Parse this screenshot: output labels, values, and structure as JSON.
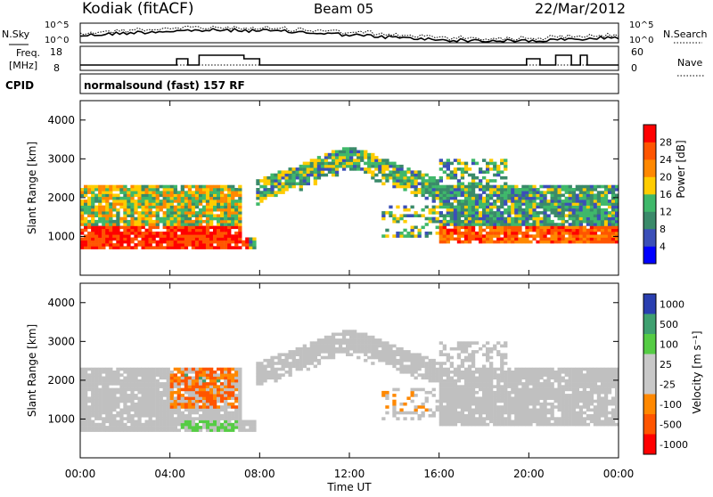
{
  "header": {
    "station": "Kodiak (fitACF)",
    "beam": "Beam 05",
    "date": "22/Mar/2012"
  },
  "noise_panel": {
    "left_label": "N.Sky",
    "right_label": "N.Search",
    "left_ticks": [
      "10^5",
      "10^0"
    ],
    "right_ticks": [
      "10^5",
      "10^0"
    ]
  },
  "freq_panel": {
    "left_label_line1": "Freq.",
    "left_label_line2": "[MHz]",
    "right_label": "Nave",
    "left_ticks": [
      "18",
      "8"
    ],
    "right_ticks": [
      "60",
      "0"
    ]
  },
  "cpid_panel": {
    "label": "CPID",
    "text": "normalsound (fast) 157 RF"
  },
  "colors": {
    "power": [
      "#0000ff",
      "#3b4fb8",
      "#3a8a6a",
      "#3fb86a",
      "#ffcc00",
      "#ff8800",
      "#ff5500",
      "#ff0000"
    ],
    "velocity": [
      "#ff0000",
      "#ff5500",
      "#ff8800",
      "#c8c8c8",
      "#c8c8c8",
      "#55cc44",
      "#3fa070",
      "#2a3fb0"
    ],
    "ground_scatter": "#c0c0c0"
  },
  "chart_data": [
    {
      "type": "heatmap",
      "name": "power",
      "ylabel": "Slant Range [km]",
      "yticks": [
        "1000",
        "2000",
        "3000",
        "4000"
      ],
      "ylim": [
        0,
        4500
      ],
      "xlim": [
        0,
        24
      ],
      "colorbar_label": "Power [dB]",
      "colorbar_ticks": [
        "4",
        "8",
        "12",
        "16",
        "20",
        "24",
        "28"
      ],
      "colorbar_range": [
        0,
        32
      ]
    },
    {
      "type": "heatmap",
      "name": "velocity",
      "ylabel": "Slant Range [km]",
      "yticks": [
        "1000",
        "2000",
        "3000",
        "4000"
      ],
      "ylim": [
        0,
        4500
      ],
      "xlim": [
        0,
        24
      ],
      "colorbar_label": "Velocity [m s⁻¹]",
      "colorbar_ticks": [
        "1000",
        "500",
        "100",
        "25",
        "-25",
        "-100",
        "-500",
        "-1000"
      ]
    }
  ],
  "xaxis": {
    "ticks": [
      "00:00",
      "04:00",
      "08:00",
      "12:00",
      "16:00",
      "20:00",
      "00:00"
    ],
    "label": "Time UT"
  }
}
